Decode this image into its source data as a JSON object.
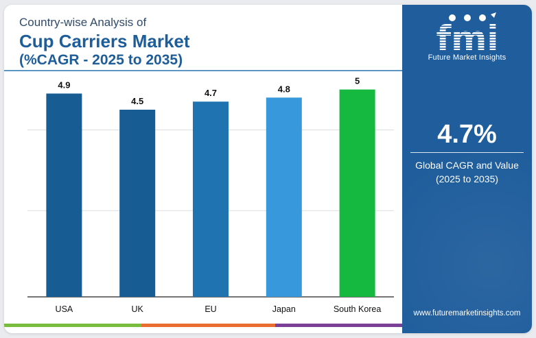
{
  "header": {
    "line1": "Country-wise Analysis of",
    "line2": "Cup Carriers Market",
    "line3": "(%CAGR - 2025 to 2035)"
  },
  "chart_data": {
    "type": "bar",
    "categories": [
      "USA",
      "UK",
      "EU",
      "Japan",
      "South Korea"
    ],
    "values": [
      4.9,
      4.5,
      4.7,
      4.8,
      5
    ],
    "value_labels": [
      "4.9",
      "4.5",
      "4.7",
      "4.8",
      "5"
    ],
    "bar_colors": [
      "#175c93",
      "#175c93",
      "#1e73b0",
      "#3799dc",
      "#16b93f"
    ],
    "ylim": [
      0,
      5.4
    ],
    "gridlines": [
      2,
      4
    ],
    "grid": true,
    "title": "",
    "xlabel": "",
    "ylabel": ""
  },
  "side_panel": {
    "brand": "fmi",
    "brand_subtitle": "Future Market Insights",
    "headline_value": "4.7%",
    "headline_label_1": "Global CAGR and Value",
    "headline_label_2": "(2025 to 2035)",
    "website": "www.futuremarketinsights.com",
    "background_color": "#1f5d9c"
  },
  "bottom_strip_colors": [
    "#79bd3e",
    "#e86d2e",
    "#7a3f97"
  ]
}
